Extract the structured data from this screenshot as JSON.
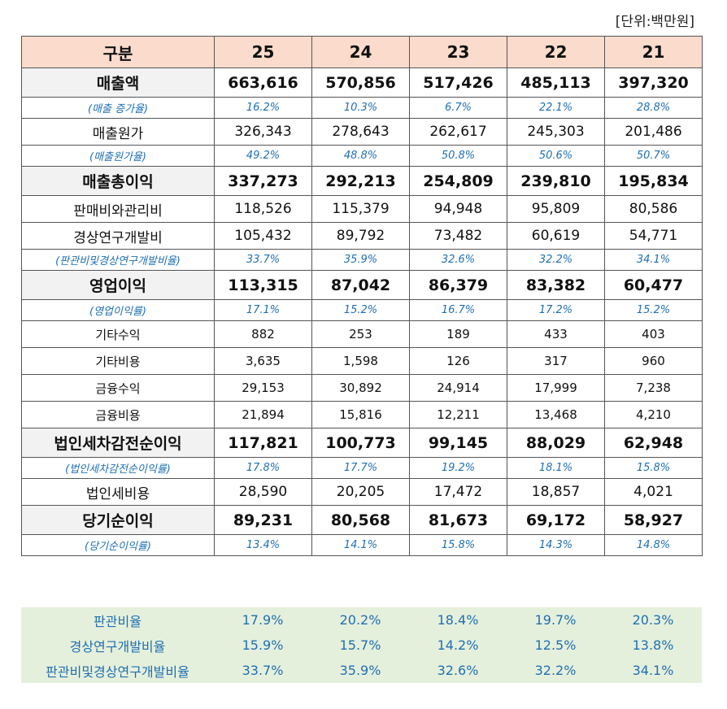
{
  "unit_label": "[단위:백만원]",
  "header": [
    "구분",
    "25",
    "24",
    "23",
    "22",
    "21"
  ],
  "rows": [
    {
      "type": "bold",
      "label": "매출액",
      "values": [
        "663,616",
        "570,856",
        "517,426",
        "485,113",
        "397,320"
      ]
    },
    {
      "type": "rate",
      "label": "(매출 증가율)",
      "values": [
        "16.2%",
        "10.3%",
        "6.7%",
        "22.1%",
        "28.8%"
      ]
    },
    {
      "type": "normal",
      "label": "매출원가",
      "values": [
        "326,343",
        "278,643",
        "262,617",
        "245,303",
        "201,486"
      ]
    },
    {
      "type": "rate",
      "label": "(매출원가율)",
      "values": [
        "49.2%",
        "48.8%",
        "50.8%",
        "50.6%",
        "50.7%"
      ]
    },
    {
      "type": "bold",
      "label": "매출총이익",
      "values": [
        "337,273",
        "292,213",
        "254,809",
        "239,810",
        "195,834"
      ]
    },
    {
      "type": "normal",
      "label": "판매비와관리비",
      "values": [
        "118,526",
        "115,379",
        "94,948",
        "95,809",
        "80,586"
      ]
    },
    {
      "type": "normal",
      "label": "경상연구개발비",
      "values": [
        "105,432",
        "89,792",
        "73,482",
        "60,619",
        "54,771"
      ]
    },
    {
      "type": "rate",
      "label": "(판관비및경상연구개발비율)",
      "values": [
        "33.7%",
        "35.9%",
        "32.6%",
        "32.2%",
        "34.1%"
      ]
    },
    {
      "type": "bold",
      "label": "영업이익",
      "values": [
        "113,315",
        "87,042",
        "86,379",
        "83,382",
        "60,477"
      ]
    },
    {
      "type": "rate",
      "label": "(영업이익률)",
      "values": [
        "17.1%",
        "15.2%",
        "16.7%",
        "17.2%",
        "15.2%"
      ]
    },
    {
      "type": "small",
      "label": "기타수익",
      "values": [
        "882",
        "253",
        "189",
        "433",
        "403"
      ]
    },
    {
      "type": "small",
      "label": "기타비용",
      "values": [
        "3,635",
        "1,598",
        "126",
        "317",
        "960"
      ]
    },
    {
      "type": "small",
      "label": "금융수익",
      "values": [
        "29,153",
        "30,892",
        "24,914",
        "17,999",
        "7,238"
      ]
    },
    {
      "type": "small",
      "label": "금융비용",
      "values": [
        "21,894",
        "15,816",
        "12,211",
        "13,468",
        "4,210"
      ]
    },
    {
      "type": "bold",
      "label": "법인세차감전순이익",
      "values": [
        "117,821",
        "100,773",
        "99,145",
        "88,029",
        "62,948"
      ]
    },
    {
      "type": "rate",
      "label": "(법인세차감전순이익률)",
      "values": [
        "17.8%",
        "17.7%",
        "19.2%",
        "18.1%",
        "15.8%"
      ]
    },
    {
      "type": "normal",
      "label": "법인세비용",
      "values": [
        "28,590",
        "20,205",
        "17,472",
        "18,857",
        "4,021"
      ]
    },
    {
      "type": "bold",
      "label": "당기순이익",
      "values": [
        "89,231",
        "80,568",
        "81,673",
        "69,172",
        "58,927"
      ]
    },
    {
      "type": "rate",
      "label": "(당기순이익률)",
      "values": [
        "13.4%",
        "14.1%",
        "15.8%",
        "14.3%",
        "14.8%"
      ]
    }
  ],
  "ratios": [
    {
      "label": "판관비율",
      "values": [
        "17.9%",
        "20.2%",
        "18.4%",
        "19.7%",
        "20.3%"
      ]
    },
    {
      "label": "경상연구개발비율",
      "values": [
        "15.9%",
        "15.7%",
        "14.2%",
        "12.5%",
        "13.8%"
      ]
    },
    {
      "label": "판관비및경상연구개발비율",
      "values": [
        "33.7%",
        "35.9%",
        "32.6%",
        "32.2%",
        "34.1%"
      ]
    }
  ]
}
